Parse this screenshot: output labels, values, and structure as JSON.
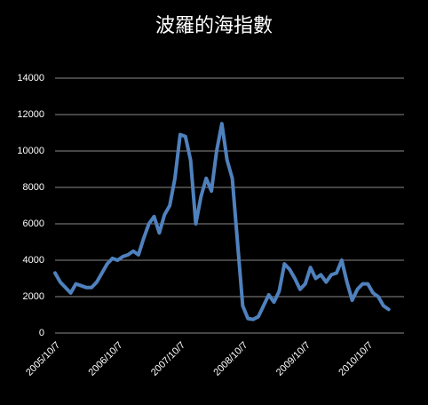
{
  "chart_data": {
    "type": "line",
    "title": "波羅的海指數",
    "categories": [
      "2005/10/7",
      null,
      null,
      null,
      null,
      null,
      null,
      null,
      null,
      null,
      null,
      null,
      "2006/10/7",
      null,
      null,
      null,
      null,
      null,
      null,
      null,
      null,
      null,
      null,
      null,
      "2007/10/7",
      null,
      null,
      null,
      null,
      null,
      null,
      null,
      null,
      null,
      null,
      null,
      "2008/10/7",
      null,
      null,
      null,
      null,
      null,
      null,
      null,
      null,
      null,
      null,
      null,
      "2009/10/7",
      null,
      null,
      null,
      null,
      null,
      null,
      null,
      null,
      null,
      null,
      null,
      "2010/10/7",
      null,
      null,
      null,
      null
    ],
    "series": [
      {
        "color": "#4f81bd",
        "values": [
          3300,
          2800,
          2500,
          2200,
          2700,
          2600,
          2500,
          2500,
          2800,
          3300,
          3800,
          4100,
          4000,
          4200,
          4300,
          4500,
          4300,
          5200,
          6000,
          6400,
          5500,
          6500,
          7000,
          8500,
          10900,
          10800,
          9500,
          6000,
          7500,
          8500,
          7800,
          10000,
          11500,
          9500,
          8500,
          5000,
          1500,
          800,
          750,
          900,
          1500,
          2100,
          1700,
          2300,
          3800,
          3500,
          3000,
          2400,
          2700,
          3600,
          3000,
          3200,
          2800,
          3200,
          3300,
          4000,
          2800,
          1800,
          2400,
          2700,
          2700,
          2200,
          2000,
          1500,
          1300
        ]
      }
    ],
    "ylim": [
      0,
      14000
    ],
    "yticks": [
      0,
      2000,
      4000,
      6000,
      8000,
      10000,
      12000,
      14000
    ],
    "grid": true
  }
}
